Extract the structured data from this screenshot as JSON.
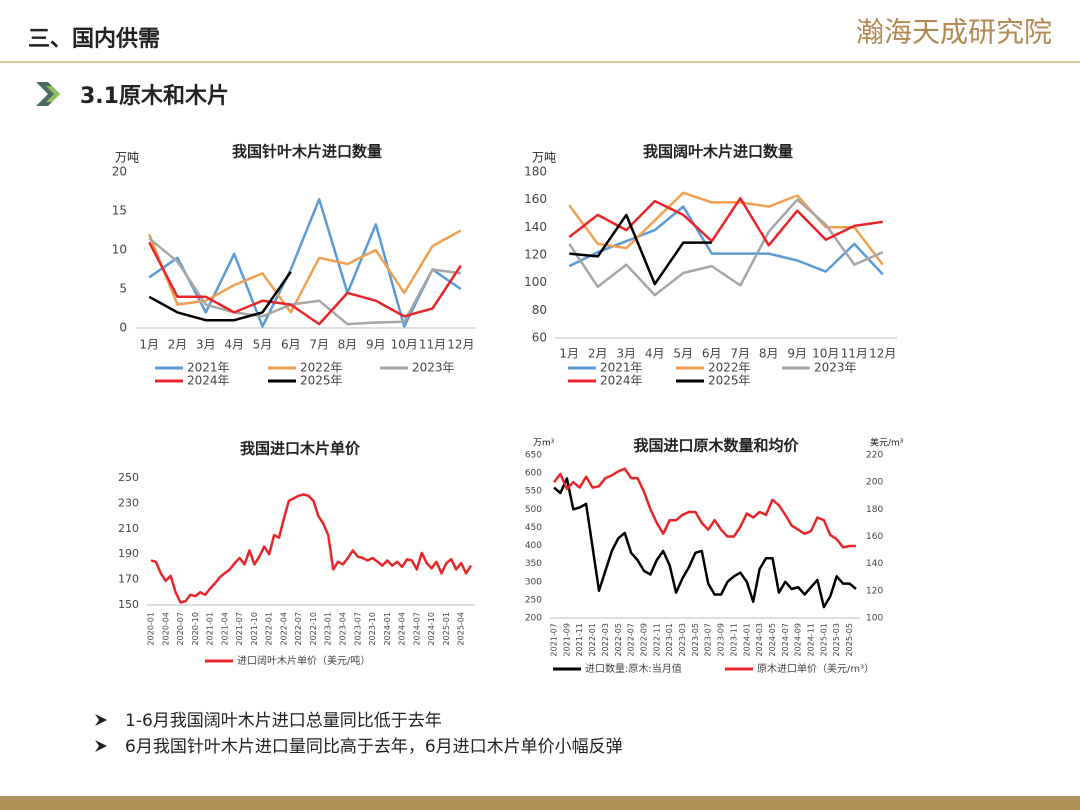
{
  "header": {
    "title": "三、国内供需",
    "logo": "瀚海天成研究院"
  },
  "section": "3.1原木和木片",
  "bullets": [
    "1-6月我国阔叶木片进口总量同比低于去年",
    "6月我国针叶木片进口量同比高于去年，6月进口木片单价小幅反弹"
  ],
  "chart_data": [
    {
      "type": "line",
      "title": "我国针叶木片进口数量",
      "ylabel": "万吨",
      "categories": [
        "1月",
        "2月",
        "3月",
        "4月",
        "5月",
        "6月",
        "7月",
        "8月",
        "9月",
        "10月",
        "11月",
        "12月"
      ],
      "ylim": [
        0,
        20
      ],
      "yticks": [
        0,
        5,
        10,
        15,
        20
      ],
      "series": [
        {
          "name": "2021年",
          "color": "#5b9bd5",
          "values": [
            6.5,
            9,
            2,
            9.5,
            0.2,
            7.5,
            16.5,
            4.5,
            13.3,
            0.2,
            7.5,
            5
          ]
        },
        {
          "name": "2022年",
          "color": "#f0a050",
          "values": [
            12,
            3,
            3.5,
            5.5,
            7,
            2,
            9,
            8.2,
            10,
            4.5,
            10.5,
            12.5
          ]
        },
        {
          "name": "2023年",
          "color": "#a6a6a6",
          "values": [
            11.5,
            8.5,
            3,
            2,
            1.5,
            3,
            3.5,
            0.5,
            0.7,
            0.8,
            7.5,
            7
          ]
        },
        {
          "name": "2024年",
          "color": "#e8262a",
          "values": [
            11,
            4,
            4,
            2,
            3.5,
            3,
            0.5,
            4.5,
            3.5,
            1.5,
            2.5,
            8
          ]
        },
        {
          "name": "2025年",
          "color": "#000000",
          "values": [
            4,
            2,
            1,
            1,
            2,
            7.2,
            null,
            null,
            null,
            null,
            null,
            null
          ]
        }
      ]
    },
    {
      "type": "line",
      "title": "我国阔叶木片进口数量",
      "ylabel": "万吨",
      "categories": [
        "1月",
        "2月",
        "3月",
        "4月",
        "5月",
        "6月",
        "7月",
        "8月",
        "9月",
        "10月",
        "11月",
        "12月"
      ],
      "ylim": [
        60,
        180
      ],
      "yticks": [
        60,
        80,
        100,
        120,
        140,
        160,
        180
      ],
      "series": [
        {
          "name": "2021年",
          "color": "#5b9bd5",
          "values": [
            112,
            122,
            130,
            138,
            155,
            121,
            121,
            121,
            116,
            108,
            128,
            106
          ]
        },
        {
          "name": "2022年",
          "color": "#f0a050",
          "values": [
            156,
            128,
            125,
            145,
            165,
            158,
            158,
            155,
            163,
            140,
            140,
            113
          ]
        },
        {
          "name": "2023年",
          "color": "#a6a6a6",
          "values": [
            128,
            97,
            113,
            91,
            107,
            112,
            98,
            137,
            160,
            142,
            113,
            122
          ]
        },
        {
          "name": "2024年",
          "color": "#e8262a",
          "values": [
            133,
            149,
            138,
            159,
            149,
            130,
            161,
            127,
            152,
            131,
            141,
            144
          ]
        },
        {
          "name": "2025年",
          "color": "#000000",
          "values": [
            121,
            119,
            149,
            99,
            129,
            129,
            null,
            null,
            null,
            null,
            null,
            null
          ]
        }
      ]
    },
    {
      "type": "line",
      "title": "我国进口木片单价",
      "categories": [
        "2020-01",
        null,
        null,
        "2020-04",
        null,
        null,
        "2020-07",
        null,
        null,
        "2020-10",
        null,
        null,
        "2021-01",
        null,
        null,
        "2021-04",
        null,
        null,
        "2021-07",
        null,
        null,
        "2021-10",
        null,
        null,
        "2022-01",
        null,
        null,
        "2022-04",
        null,
        null,
        "2022-07",
        null,
        null,
        "2022-10",
        null,
        null,
        "2023-01",
        null,
        null,
        "2023-04",
        null,
        null,
        "2023-07",
        null,
        null,
        "2023-10",
        null,
        null,
        "2024-01",
        null,
        null,
        "2024-04",
        null,
        null,
        "2024-07",
        null,
        null,
        "2024-10",
        null,
        null,
        "2025-01",
        null,
        null,
        "2025-04",
        null,
        null
      ],
      "ylim": [
        150,
        250
      ],
      "yticks": [
        150,
        170,
        190,
        210,
        230,
        250
      ],
      "series": [
        {
          "name": "进口阔叶木片单价（美元/吨）",
          "color": "#e8262a",
          "values": [
            185,
            184,
            175,
            169,
            173,
            160,
            152,
            153,
            158,
            157,
            160,
            158,
            163,
            167,
            172,
            175,
            178,
            183,
            187,
            182,
            193,
            182,
            188,
            196,
            190,
            205,
            203,
            218,
            232,
            234,
            236,
            237,
            236,
            232,
            220,
            214,
            205,
            178,
            184,
            182,
            187,
            193,
            188,
            187,
            185,
            187,
            184,
            181,
            185,
            181,
            184,
            180,
            186,
            185,
            178,
            191,
            183,
            179,
            184,
            175,
            183,
            186,
            178,
            183,
            175,
            181
          ]
        }
      ]
    },
    {
      "type": "line",
      "title": "我国进口原木数量和均价",
      "ylabel": "万m³",
      "y2label": "美元/m³",
      "categories": [
        "2021-07",
        null,
        "2021-09",
        null,
        "2021-11",
        null,
        "2022-01",
        null,
        "2022-03",
        null,
        "2022-05",
        null,
        "2022-07",
        null,
        "2022-09",
        null,
        "2022-11",
        null,
        "2023-01",
        null,
        "2023-03",
        null,
        "2023-05",
        null,
        "2023-07",
        null,
        "2023-09",
        null,
        "2023-11",
        null,
        "2024-01",
        null,
        "2024-03",
        null,
        "2024-05",
        null,
        "2024-07",
        null,
        "2024-09",
        null,
        "2024-11",
        null,
        "2025-01",
        null,
        "2025-03",
        null,
        "2025-05",
        null
      ],
      "ylim": [
        200,
        650
      ],
      "yticks": [
        200,
        250,
        300,
        350,
        400,
        450,
        500,
        550,
        600,
        650
      ],
      "y2lim": [
        100,
        220
      ],
      "y2ticks": [
        100,
        120,
        140,
        160,
        180,
        200,
        220
      ],
      "series": [
        {
          "name": "进口数量:原木:当月值",
          "color": "#000000",
          "values": [
            560,
            545,
            585,
            500,
            505,
            515,
            395,
            275,
            330,
            385,
            420,
            435,
            380,
            360,
            330,
            320,
            360,
            385,
            345,
            270,
            310,
            340,
            380,
            385,
            295,
            265,
            265,
            300,
            315,
            325,
            300,
            245,
            335,
            365,
            365,
            270,
            300,
            280,
            285,
            265,
            285,
            305,
            230,
            260,
            315,
            295,
            295,
            280
          ]
        },
        {
          "name": "原木进口单价（美元/m³）",
          "color": "#e8262a",
          "axis": "y2",
          "values": [
            200,
            206,
            195,
            200,
            196,
            204,
            196,
            197,
            203,
            205,
            208,
            210,
            203,
            203,
            193,
            180,
            170,
            162,
            172,
            172,
            176,
            178,
            178,
            170,
            165,
            172,
            165,
            160,
            160,
            167,
            177,
            174,
            178,
            176,
            187,
            183,
            176,
            168,
            165,
            162,
            164,
            174,
            172,
            161,
            158,
            152,
            153,
            153
          ]
        }
      ]
    }
  ]
}
